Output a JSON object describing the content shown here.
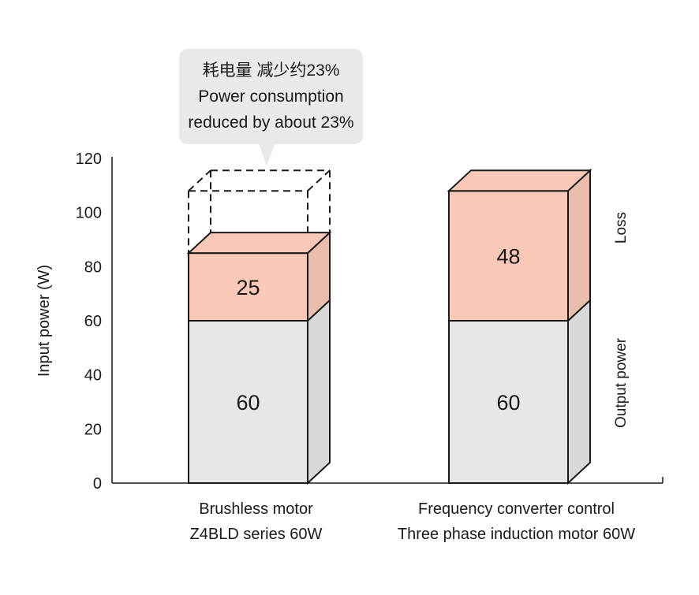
{
  "chart_data": {
    "type": "bar",
    "stacked": true,
    "ylabel": "Input power (W)",
    "ylim": [
      0,
      120
    ],
    "yticks": [
      0,
      20,
      40,
      60,
      80,
      100,
      120
    ],
    "categories": [
      [
        "Brushless motor",
        "Z4BLD series 60W"
      ],
      [
        "Frequency converter control",
        "Three phase induction motor 60W"
      ]
    ],
    "series": [
      {
        "name": "Output power",
        "values": [
          60,
          60
        ],
        "color": "#e6e6e6"
      },
      {
        "name": "Loss",
        "values": [
          25,
          48
        ],
        "color": "#f9c8b7"
      }
    ],
    "reference_outline": {
      "category_index": 0,
      "value": 108
    },
    "callout": {
      "lines": [
        "耗电量 减少约23%",
        "Power consumption",
        "reduced by about 23%"
      ],
      "background": "#e9e9e9"
    },
    "colors": {
      "stroke": "#1a1a1a",
      "side_shade": "#000000",
      "axis": "#1a1a1a"
    }
  }
}
